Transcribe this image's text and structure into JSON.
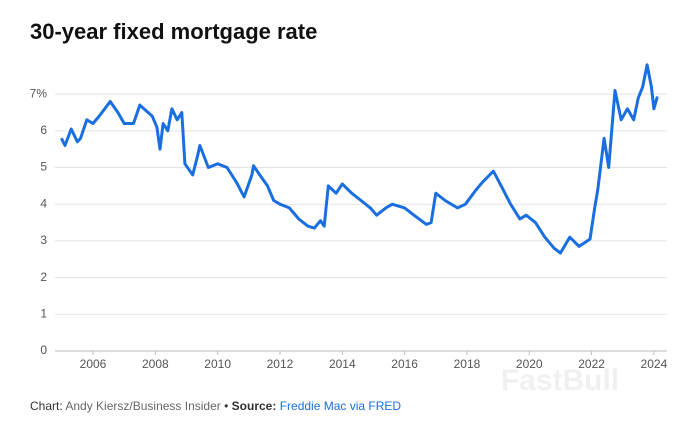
{
  "chart_data": {
    "type": "line",
    "title": "30-year fixed mortgage rate",
    "credit_label": "Chart:",
    "credit": "Andy Kiersz/Business Insider",
    "separator": "•",
    "source_label": "Source:",
    "source": "Freddie Mac via FRED",
    "watermark": "FastBull",
    "xlim": [
      2004.78,
      2024.42
    ],
    "ylim": [
      0,
      7.93
    ],
    "xticks": [
      2006,
      2008,
      2010,
      2012,
      2014,
      2016,
      2018,
      2020,
      2022,
      2024
    ],
    "yticks": [
      0,
      1,
      2,
      3,
      4,
      5,
      6,
      {
        "value": 7,
        "label": "7%"
      }
    ],
    "grid": true,
    "series": [
      {
        "name": "30-year fixed mortgage rate",
        "color": "#1a6fe0",
        "x": [
          2005.0,
          2005.1,
          2005.3,
          2005.5,
          2005.6,
          2005.8,
          2006.0,
          2006.2,
          2006.55,
          2006.8,
          2007.0,
          2007.3,
          2007.5,
          2007.9,
          2008.05,
          2008.15,
          2008.25,
          2008.4,
          2008.53,
          2008.7,
          2008.85,
          2008.95,
          2009.2,
          2009.35,
          2009.43,
          2009.7,
          2010.0,
          2010.3,
          2010.6,
          2010.85,
          2011.1,
          2011.15,
          2011.35,
          2011.6,
          2011.8,
          2012.0,
          2012.3,
          2012.6,
          2012.9,
          2013.1,
          2013.3,
          2013.42,
          2013.55,
          2013.8,
          2014.0,
          2014.3,
          2014.6,
          2014.9,
          2015.1,
          2015.4,
          2015.6,
          2016.0,
          2016.3,
          2016.7,
          2016.85,
          2017.0,
          2017.3,
          2017.7,
          2017.95,
          2018.3,
          2018.5,
          2018.85,
          2019.1,
          2019.4,
          2019.7,
          2019.9,
          2020.2,
          2020.5,
          2020.8,
          2021.0,
          2021.3,
          2021.6,
          2021.95,
          2022.1,
          2022.2,
          2022.4,
          2022.55,
          2022.75,
          2022.95,
          2023.15,
          2023.35,
          2023.5,
          2023.64,
          2023.78,
          2023.92,
          2024.0,
          2024.1
        ],
        "values": [
          5.77,
          5.6,
          6.05,
          5.7,
          5.8,
          6.3,
          6.2,
          6.4,
          6.8,
          6.5,
          6.2,
          6.2,
          6.7,
          6.4,
          6.1,
          5.5,
          6.2,
          6.0,
          6.6,
          6.3,
          6.5,
          5.1,
          4.8,
          5.3,
          5.6,
          5.0,
          5.1,
          5.0,
          4.6,
          4.2,
          4.8,
          5.05,
          4.8,
          4.5,
          4.1,
          4.0,
          3.9,
          3.6,
          3.4,
          3.35,
          3.55,
          3.4,
          4.5,
          4.3,
          4.55,
          4.3,
          4.1,
          3.9,
          3.7,
          3.9,
          4.0,
          3.9,
          3.7,
          3.45,
          3.5,
          4.3,
          4.1,
          3.9,
          4.0,
          4.4,
          4.6,
          4.9,
          4.5,
          4.0,
          3.6,
          3.7,
          3.5,
          3.1,
          2.8,
          2.67,
          3.1,
          2.85,
          3.05,
          3.9,
          4.4,
          5.8,
          5.0,
          7.1,
          6.3,
          6.6,
          6.3,
          6.9,
          7.2,
          7.8,
          7.2,
          6.6,
          6.9
        ]
      }
    ]
  }
}
